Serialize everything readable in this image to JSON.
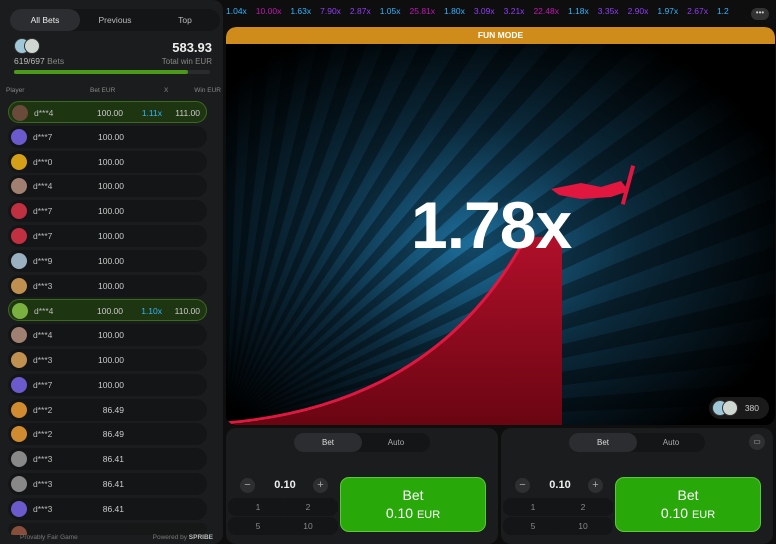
{
  "sidebar": {
    "tabs": [
      {
        "label": "All Bets",
        "active": true
      },
      {
        "label": "Previous"
      },
      {
        "label": "Top"
      }
    ],
    "bets_count": "619/697",
    "bets_label": "Bets",
    "total_win": "583.93",
    "total_win_label": "Total win EUR",
    "progress_fraction": 0.89,
    "columns": {
      "player": "Player",
      "bet": "Bet EUR",
      "x": "X",
      "win": "Win EUR"
    },
    "rows": [
      {
        "player": "d***4",
        "bet": "100.00",
        "x": "1.11x",
        "win": "111.00",
        "won": true,
        "avatar": "#6a4a3a"
      },
      {
        "player": "d***7",
        "bet": "100.00",
        "avatar": "#6a5acd"
      },
      {
        "player": "d***0",
        "bet": "100.00",
        "avatar": "#d4a017"
      },
      {
        "player": "d***4",
        "bet": "100.00",
        "avatar": "#a08070"
      },
      {
        "player": "d***7",
        "bet": "100.00",
        "avatar": "#c03040"
      },
      {
        "player": "d***7",
        "bet": "100.00",
        "avatar": "#c03040"
      },
      {
        "player": "d***9",
        "bet": "100.00",
        "avatar": "#9ab0c0"
      },
      {
        "player": "d***3",
        "bet": "100.00",
        "avatar": "#c09050"
      },
      {
        "player": "d***4",
        "bet": "100.00",
        "x": "1.10x",
        "win": "110.00",
        "won": true,
        "avatar": "#7ab040"
      },
      {
        "player": "d***4",
        "bet": "100.00",
        "avatar": "#a08070"
      },
      {
        "player": "d***3",
        "bet": "100.00",
        "avatar": "#c09050"
      },
      {
        "player": "d***7",
        "bet": "100.00",
        "avatar": "#6a5acd"
      },
      {
        "player": "d***2",
        "bet": "86.49",
        "avatar": "#d08a30"
      },
      {
        "player": "d***2",
        "bet": "86.49",
        "avatar": "#d08a30"
      },
      {
        "player": "d***3",
        "bet": "86.41",
        "avatar": "#888888"
      },
      {
        "player": "d***3",
        "bet": "86.41",
        "avatar": "#888888"
      },
      {
        "player": "d***3",
        "bet": "86.41",
        "avatar": "#6a5acd"
      }
    ],
    "footer": {
      "fair": "Provably Fair Game",
      "powered": "Powered by",
      "brand": "SPRIBE"
    }
  },
  "history": [
    "1.04x",
    "10.00x",
    "1.63x",
    "7.90x",
    "2.87x",
    "1.05x",
    "25.81x",
    "1.80x",
    "3.09x",
    "3.21x",
    "22.48x",
    "1.18x",
    "3.35x",
    "2.90x",
    "1.97x",
    "2.67x",
    "1.2"
  ],
  "colors": {
    "low": "#34b4ff",
    "mid": "#913ef8",
    "high": "#c017b4",
    "accent": "#28a909",
    "fun": "#d08c1a",
    "curve": "#e1173f"
  },
  "game": {
    "mode": "FUN MODE",
    "multiplier": "1.78x",
    "online": "380"
  },
  "panels": [
    {
      "tabs": [
        "Bet",
        "Auto"
      ],
      "amount": "0.10",
      "quick": [
        "1",
        "2",
        "5",
        "10"
      ],
      "bet_label": "Bet",
      "bet_amount": "0.10",
      "currency": "EUR"
    },
    {
      "tabs": [
        "Bet",
        "Auto"
      ],
      "amount": "0.10",
      "quick": [
        "1",
        "2",
        "5",
        "10"
      ],
      "bet_label": "Bet",
      "bet_amount": "0.10",
      "currency": "EUR"
    }
  ]
}
